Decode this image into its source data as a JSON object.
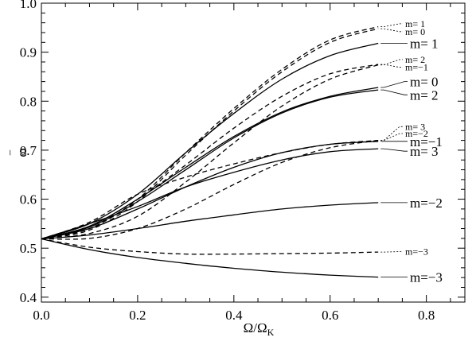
{
  "chart_data": {
    "type": "line",
    "title": "",
    "xlabel": "Ω/Ω",
    "xlabel_sub": "K",
    "ylabel": "ω",
    "ylabel_accent": "‾",
    "xlim": [
      0.0,
      0.88
    ],
    "ylim": [
      0.39,
      1.0
    ],
    "xticks": [
      "0.0",
      "0.2",
      "0.4",
      "0.6",
      "0.8"
    ],
    "xtick_values": [
      0.0,
      0.2,
      0.4,
      0.6,
      0.8
    ],
    "yticks": [
      "0.4",
      "0.5",
      "0.6",
      "0.7",
      "0.8",
      "0.9",
      "1.0"
    ],
    "ytick_values": [
      0.4,
      0.5,
      0.6,
      0.7,
      0.8,
      0.9,
      1.0
    ],
    "grid": false,
    "series": [
      {
        "label": "m= 1",
        "style": "solid",
        "label_size": "big",
        "label_y": 0.918,
        "x": [
          0.0,
          0.1,
          0.2,
          0.3,
          0.4,
          0.5,
          0.6,
          0.7
        ],
        "y": [
          0.519,
          0.55,
          0.61,
          0.695,
          0.775,
          0.845,
          0.893,
          0.918
        ]
      },
      {
        "label": "m= 0",
        "style": "solid",
        "label_size": "big",
        "label_y": 0.84,
        "x": [
          0.0,
          0.1,
          0.2,
          0.3,
          0.4,
          0.5,
          0.6,
          0.7
        ],
        "y": [
          0.519,
          0.545,
          0.6,
          0.665,
          0.728,
          0.778,
          0.81,
          0.828
        ]
      },
      {
        "label": "m= 2",
        "style": "solid",
        "label_size": "big",
        "label_y": 0.813,
        "x": [
          0.0,
          0.1,
          0.2,
          0.3,
          0.4,
          0.5,
          0.6,
          0.7
        ],
        "y": [
          0.519,
          0.543,
          0.595,
          0.66,
          0.725,
          0.776,
          0.808,
          0.823
        ]
      },
      {
        "label": "m=−1",
        "style": "solid",
        "label_size": "big",
        "label_y": 0.718,
        "x": [
          0.0,
          0.1,
          0.2,
          0.3,
          0.4,
          0.5,
          0.6,
          0.7
        ],
        "y": [
          0.519,
          0.54,
          0.58,
          0.625,
          0.665,
          0.695,
          0.712,
          0.718
        ]
      },
      {
        "label": "m= 3",
        "style": "solid",
        "label_size": "big",
        "label_y": 0.698,
        "x": [
          0.0,
          0.1,
          0.2,
          0.3,
          0.4,
          0.5,
          0.6,
          0.7
        ],
        "y": [
          0.519,
          0.55,
          0.585,
          0.625,
          0.655,
          0.68,
          0.697,
          0.703
        ]
      },
      {
        "label": "m=−2",
        "style": "solid",
        "label_size": "big",
        "label_y": 0.593,
        "x": [
          0.0,
          0.1,
          0.2,
          0.3,
          0.4,
          0.5,
          0.6,
          0.7
        ],
        "y": [
          0.519,
          0.527,
          0.54,
          0.555,
          0.568,
          0.58,
          0.588,
          0.593
        ]
      },
      {
        "label": "m=−3",
        "style": "solid",
        "label_size": "big",
        "label_y": 0.441,
        "x": [
          0.0,
          0.1,
          0.2,
          0.3,
          0.4,
          0.5,
          0.6,
          0.7
        ],
        "y": [
          0.519,
          0.497,
          0.481,
          0.469,
          0.459,
          0.451,
          0.445,
          0.441
        ]
      },
      {
        "label": "m= 1",
        "style": "dashed",
        "label_size": "small",
        "label_y": 0.958,
        "x": [
          0.0,
          0.1,
          0.2,
          0.3,
          0.4,
          0.5,
          0.6,
          0.7
        ],
        "y": [
          0.519,
          0.54,
          0.6,
          0.695,
          0.785,
          0.865,
          0.925,
          0.952
        ]
      },
      {
        "label": "m= 0",
        "style": "dashed",
        "label_size": "small",
        "label_y": 0.942,
        "x": [
          0.0,
          0.1,
          0.2,
          0.3,
          0.4,
          0.5,
          0.6,
          0.7
        ],
        "y": [
          0.519,
          0.537,
          0.595,
          0.69,
          0.78,
          0.86,
          0.92,
          0.948
        ]
      },
      {
        "label": "m= 2",
        "style": "dashed",
        "label_size": "small",
        "label_y": 0.885,
        "x": [
          0.0,
          0.1,
          0.2,
          0.3,
          0.4,
          0.5,
          0.6,
          0.7
        ],
        "y": [
          0.519,
          0.53,
          0.565,
          0.635,
          0.715,
          0.79,
          0.845,
          0.874
        ]
      },
      {
        "label": "m=−1",
        "style": "dashed",
        "label_size": "small",
        "label_y": 0.869,
        "x": [
          0.0,
          0.1,
          0.2,
          0.3,
          0.4,
          0.5,
          0.6,
          0.7
        ],
        "y": [
          0.519,
          0.545,
          0.6,
          0.67,
          0.745,
          0.81,
          0.856,
          0.875
        ]
      },
      {
        "label": "m= 3",
        "style": "dashed",
        "label_size": "small",
        "label_y": 0.748,
        "x": [
          0.0,
          0.1,
          0.2,
          0.3,
          0.4,
          0.5,
          0.6,
          0.7
        ],
        "y": [
          0.519,
          0.52,
          0.54,
          0.58,
          0.63,
          0.675,
          0.705,
          0.72
        ]
      },
      {
        "label": "m=−2",
        "style": "dashed",
        "label_size": "small",
        "label_y": 0.734,
        "x": [
          0.0,
          0.1,
          0.2,
          0.3,
          0.4,
          0.5,
          0.6,
          0.7
        ],
        "y": [
          0.519,
          0.553,
          0.61,
          0.645,
          0.672,
          0.695,
          0.712,
          0.72
        ]
      },
      {
        "label": "m=−3",
        "style": "dashed",
        "label_size": "small",
        "label_y": 0.493,
        "x": [
          0.0,
          0.1,
          0.2,
          0.3,
          0.4,
          0.5,
          0.6,
          0.7
        ],
        "y": [
          0.519,
          0.502,
          0.493,
          0.488,
          0.488,
          0.489,
          0.49,
          0.492
        ]
      }
    ]
  }
}
